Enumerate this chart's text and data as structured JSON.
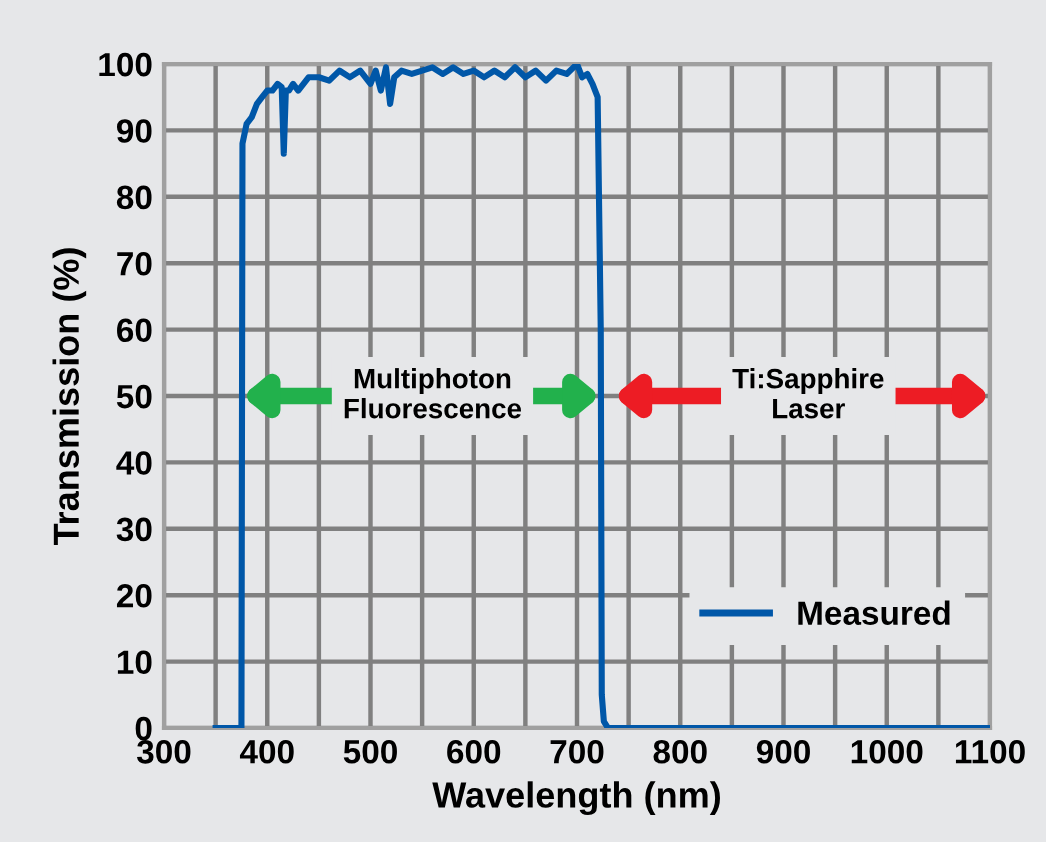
{
  "chart_data": {
    "type": "line",
    "xlabel": "Wavelength (nm)",
    "ylabel": "Transmission (%)",
    "xlim": [
      300,
      1100
    ],
    "ylim": [
      0,
      100
    ],
    "xticks": [
      300,
      {
        "value": 350,
        "label": null
      },
      400,
      {
        "value": 450,
        "label": null
      },
      500,
      {
        "value": 550,
        "label": null
      },
      600,
      {
        "value": 650,
        "label": null
      },
      700,
      {
        "value": 750,
        "label": null
      },
      800,
      {
        "value": 850,
        "label": null
      },
      900,
      {
        "value": 950,
        "label": null
      },
      1000,
      {
        "value": 1050,
        "label": null
      },
      1100
    ],
    "yticks": [
      0,
      10,
      20,
      30,
      40,
      50,
      60,
      70,
      80,
      90,
      100
    ],
    "grid": true,
    "legend": "bottom right",
    "marker": "none",
    "line_style": "solid",
    "series": [
      {
        "name": "Measured",
        "color": "#0057a8",
        "x": [
          350,
          375,
          376,
          380,
          385,
          390,
          395,
          400,
          405,
          410,
          414,
          416,
          418,
          421,
          425,
          430,
          440,
          450,
          460,
          470,
          480,
          490,
          500,
          505,
          510,
          515,
          519,
          523,
          530,
          540,
          550,
          560,
          570,
          580,
          590,
          600,
          610,
          620,
          630,
          640,
          650,
          660,
          670,
          680,
          690,
          700,
          705,
          710,
          715,
          720,
          723,
          724,
          726,
          730,
          740,
          1100
        ],
        "values": [
          0,
          0,
          88,
          91,
          92,
          94,
          95,
          96,
          96,
          97,
          96.5,
          86.5,
          96,
          96,
          97,
          96,
          98,
          98,
          97.5,
          99,
          98,
          99,
          97,
          99,
          96,
          99.5,
          94,
          98,
          99,
          98.5,
          99,
          99.5,
          98.5,
          99.5,
          98.5,
          99,
          98,
          99,
          98,
          99.5,
          98,
          99,
          97.5,
          99,
          98.5,
          100,
          98,
          98.5,
          97,
          95,
          60,
          5,
          1,
          0,
          0,
          0
        ]
      }
    ],
    "annotations": [
      "Multiphoton\nFluorescence",
      "Ti:Sapphire\nLaser"
    ]
  }
}
